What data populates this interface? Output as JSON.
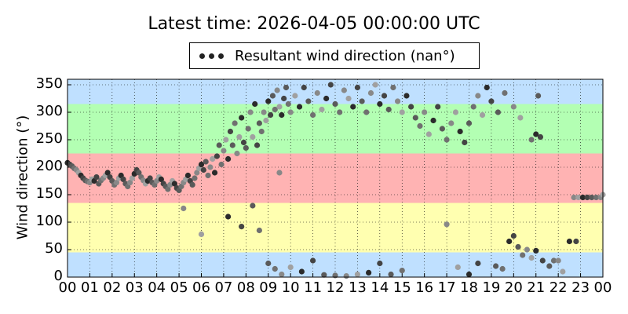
{
  "chart_data": {
    "type": "scatter",
    "title": "Latest time: 2026-04-05 00:00:00 UTC",
    "ylabel": "Wind direction (°)",
    "xlabel": "",
    "legend": {
      "label": "Resultant wind direction (nan°)",
      "placement": "top-center"
    },
    "xlim": [
      0,
      24
    ],
    "ylim": [
      0,
      360
    ],
    "xticks": [
      "00",
      "01",
      "02",
      "03",
      "04",
      "05",
      "06",
      "07",
      "08",
      "09",
      "10",
      "11",
      "12",
      "13",
      "14",
      "15",
      "16",
      "17",
      "18",
      "19",
      "20",
      "21",
      "22",
      "23",
      "00"
    ],
    "yticks": [
      0,
      50,
      100,
      150,
      200,
      250,
      300,
      350
    ],
    "grid": true,
    "bands": [
      {
        "from": 0,
        "to": 45,
        "color": "#bfe0ff"
      },
      {
        "from": 45,
        "to": 135,
        "color": "#ffffb0"
      },
      {
        "from": 135,
        "to": 225,
        "color": "#ffb3b3"
      },
      {
        "from": 225,
        "to": 315,
        "color": "#b3ffb3"
      },
      {
        "from": 315,
        "to": 360,
        "color": "#bfe0ff"
      }
    ],
    "series": [
      {
        "name": "Resultant wind direction (nan°)",
        "points": [
          [
            0.0,
            208
          ],
          [
            0.1,
            205
          ],
          [
            0.2,
            202
          ],
          [
            0.3,
            198
          ],
          [
            0.4,
            195
          ],
          [
            0.5,
            190
          ],
          [
            0.6,
            185
          ],
          [
            0.7,
            180
          ],
          [
            0.8,
            176
          ],
          [
            0.9,
            174
          ],
          [
            1.0,
            172
          ],
          [
            1.1,
            178
          ],
          [
            1.2,
            175
          ],
          [
            1.3,
            182
          ],
          [
            1.4,
            170
          ],
          [
            1.5,
            176
          ],
          [
            1.6,
            180
          ],
          [
            1.7,
            185
          ],
          [
            1.8,
            190
          ],
          [
            1.9,
            182
          ],
          [
            2.0,
            175
          ],
          [
            2.1,
            168
          ],
          [
            2.2,
            172
          ],
          [
            2.3,
            180
          ],
          [
            2.4,
            185
          ],
          [
            2.5,
            178
          ],
          [
            2.6,
            170
          ],
          [
            2.7,
            165
          ],
          [
            2.8,
            172
          ],
          [
            2.9,
            180
          ],
          [
            3.0,
            188
          ],
          [
            3.1,
            195
          ],
          [
            3.2,
            190
          ],
          [
            3.3,
            182
          ],
          [
            3.4,
            176
          ],
          [
            3.5,
            170
          ],
          [
            3.6,
            175
          ],
          [
            3.7,
            180
          ],
          [
            3.8,
            172
          ],
          [
            3.9,
            168
          ],
          [
            4.0,
            175
          ],
          [
            4.1,
            182
          ],
          [
            4.2,
            178
          ],
          [
            4.3,
            170
          ],
          [
            4.4,
            165
          ],
          [
            4.5,
            160
          ],
          [
            4.6,
            168
          ],
          [
            4.7,
            175
          ],
          [
            4.8,
            170
          ],
          [
            4.9,
            162
          ],
          [
            5.0,
            158
          ],
          [
            5.1,
            165
          ],
          [
            5.2,
            172
          ],
          [
            5.3,
            178
          ],
          [
            5.4,
            185
          ],
          [
            5.5,
            175
          ],
          [
            5.6,
            168
          ],
          [
            5.7,
            180
          ],
          [
            5.8,
            190
          ],
          [
            5.9,
            198
          ],
          [
            6.0,
            205
          ],
          [
            6.1,
            195
          ],
          [
            6.2,
            210
          ],
          [
            6.3,
            185
          ],
          [
            6.4,
            200
          ],
          [
            6.5,
            215
          ],
          [
            6.6,
            190
          ],
          [
            6.7,
            220
          ],
          [
            6.8,
            240
          ],
          [
            6.9,
            205
          ],
          [
            7.0,
            230
          ],
          [
            7.1,
            250
          ],
          [
            7.2,
            215
          ],
          [
            7.3,
            265
          ],
          [
            7.4,
            240
          ],
          [
            7.5,
            280
          ],
          [
            7.6,
            225
          ],
          [
            7.7,
            255
          ],
          [
            7.8,
            290
          ],
          [
            7.9,
            245
          ],
          [
            8.0,
            235
          ],
          [
            8.1,
            270
          ],
          [
            8.2,
            300
          ],
          [
            8.3,
            255
          ],
          [
            8.4,
            315
          ],
          [
            8.5,
            240
          ],
          [
            8.6,
            280
          ],
          [
            8.7,
            265
          ],
          [
            8.8,
            300
          ],
          [
            8.9,
            285
          ],
          [
            9.0,
            320
          ],
          [
            9.1,
            295
          ],
          [
            9.2,
            330
          ],
          [
            9.3,
            305
          ],
          [
            9.4,
            340
          ],
          [
            9.5,
            310
          ],
          [
            9.6,
            295
          ],
          [
            9.7,
            325
          ],
          [
            9.8,
            345
          ],
          [
            9.9,
            315
          ],
          [
            10.0,
            300
          ],
          [
            10.2,
            330
          ],
          [
            10.4,
            310
          ],
          [
            10.6,
            345
          ],
          [
            10.8,
            320
          ],
          [
            11.0,
            295
          ],
          [
            11.2,
            335
          ],
          [
            11.4,
            305
          ],
          [
            11.6,
            325
          ],
          [
            11.8,
            350
          ],
          [
            12.0,
            315
          ],
          [
            12.2,
            300
          ],
          [
            12.4,
            340
          ],
          [
            12.6,
            325
          ],
          [
            12.8,
            310
          ],
          [
            13.0,
            345
          ],
          [
            13.2,
            320
          ],
          [
            13.4,
            300
          ],
          [
            13.6,
            335
          ],
          [
            13.8,
            350
          ],
          [
            14.0,
            315
          ],
          [
            14.2,
            330
          ],
          [
            14.4,
            305
          ],
          [
            14.6,
            345
          ],
          [
            14.8,
            320
          ],
          [
            15.0,
            300
          ],
          [
            15.2,
            330
          ],
          [
            15.4,
            310
          ],
          [
            15.6,
            290
          ],
          [
            15.8,
            275
          ],
          [
            16.0,
            300
          ],
          [
            16.2,
            260
          ],
          [
            16.4,
            285
          ],
          [
            16.6,
            310
          ],
          [
            16.8,
            270
          ],
          [
            17.0,
            250
          ],
          [
            17.2,
            280
          ],
          [
            17.4,
            300
          ],
          [
            17.6,
            265
          ],
          [
            17.8,
            245
          ],
          [
            18.0,
            280
          ],
          [
            18.2,
            310
          ],
          [
            18.4,
            330
          ],
          [
            18.6,
            295
          ],
          [
            18.8,
            345
          ],
          [
            19.0,
            320
          ],
          [
            19.3,
            300
          ],
          [
            19.6,
            335
          ],
          [
            20.0,
            310
          ],
          [
            20.3,
            290
          ],
          [
            21.0,
            260
          ],
          [
            21.2,
            255
          ],
          [
            21.1,
            330
          ],
          [
            20.8,
            250
          ],
          [
            22.7,
            145
          ],
          [
            22.9,
            145
          ],
          [
            23.1,
            145
          ],
          [
            23.3,
            145
          ],
          [
            23.5,
            145
          ],
          [
            23.7,
            145
          ],
          [
            23.9,
            145
          ],
          [
            24.0,
            150
          ],
          [
            19.8,
            65
          ],
          [
            20.0,
            75
          ],
          [
            20.2,
            55
          ],
          [
            20.4,
            40
          ],
          [
            20.6,
            50
          ],
          [
            20.8,
            35
          ],
          [
            21.0,
            48
          ],
          [
            21.3,
            30
          ],
          [
            21.6,
            20
          ],
          [
            21.8,
            30
          ],
          [
            22.0,
            30
          ],
          [
            22.2,
            10
          ],
          [
            22.5,
            65
          ],
          [
            22.8,
            65
          ],
          [
            9.0,
            25
          ],
          [
            9.3,
            15
          ],
          [
            9.6,
            5
          ],
          [
            10.0,
            18
          ],
          [
            10.5,
            10
          ],
          [
            11.0,
            30
          ],
          [
            11.5,
            4
          ],
          [
            12.0,
            3
          ],
          [
            12.5,
            2
          ],
          [
            13.0,
            5
          ],
          [
            13.5,
            8
          ],
          [
            14.0,
            25
          ],
          [
            14.5,
            5
          ],
          [
            15.0,
            12
          ],
          [
            17.0,
            96
          ],
          [
            17.5,
            18
          ],
          [
            18.0,
            5
          ],
          [
            18.4,
            25
          ],
          [
            19.2,
            20
          ],
          [
            19.5,
            15
          ],
          [
            5.2,
            125
          ],
          [
            6.0,
            78
          ],
          [
            7.2,
            110
          ],
          [
            7.8,
            92
          ],
          [
            8.3,
            130
          ],
          [
            8.6,
            85
          ],
          [
            9.5,
            190
          ]
        ]
      }
    ]
  }
}
